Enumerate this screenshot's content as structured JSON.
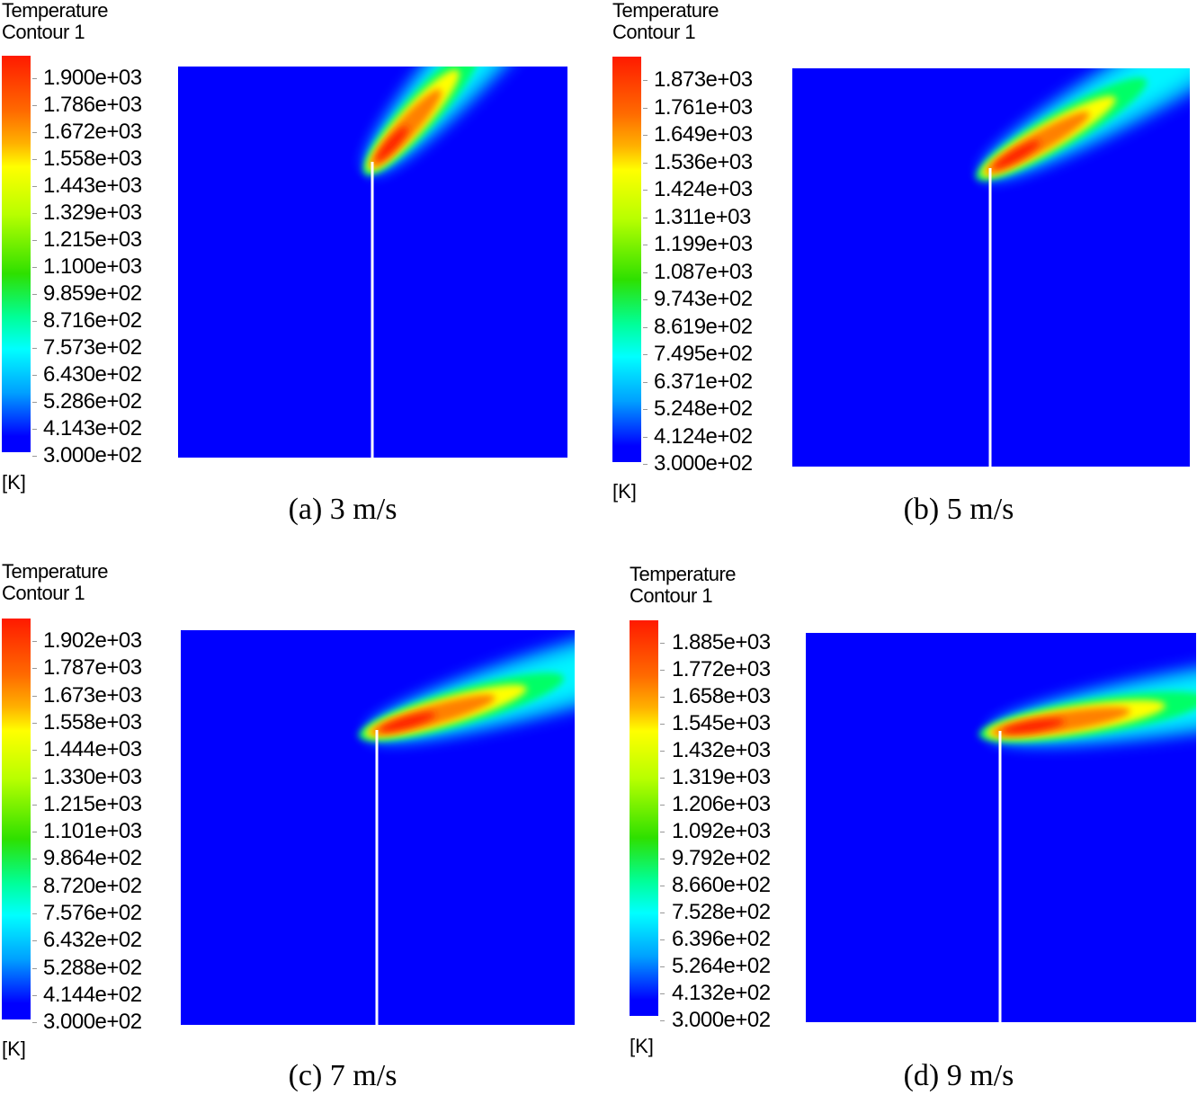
{
  "chart_data": {
    "type": "heatmap",
    "variable": "Temperature",
    "panels": [
      {
        "id": "a",
        "title_line1": "Temperature",
        "title_line2": "Contour 1",
        "unit": "[K]",
        "caption": "(a) 3 m/s",
        "velocity_mps": 3,
        "range": [
          300,
          1900
        ],
        "ticks": [
          "1.900e+03",
          "1.786e+03",
          "1.672e+03",
          "1.558e+03",
          "1.443e+03",
          "1.329e+03",
          "1.215e+03",
          "1.100e+03",
          "9.859e+02",
          "8.716e+02",
          "7.573e+02",
          "6.430e+02",
          "5.286e+02",
          "4.143e+02",
          "3.000e+02"
        ]
      },
      {
        "id": "b",
        "title_line1": "Temperature",
        "title_line2": "Contour 1",
        "unit": "[K]",
        "caption": "(b) 5 m/s",
        "velocity_mps": 5,
        "range": [
          300,
          1873
        ],
        "ticks": [
          "1.873e+03",
          "1.761e+03",
          "1.649e+03",
          "1.536e+03",
          "1.424e+03",
          "1.311e+03",
          "1.199e+03",
          "1.087e+03",
          "9.743e+02",
          "8.619e+02",
          "7.495e+02",
          "6.371e+02",
          "5.248e+02",
          "4.124e+02",
          "3.000e+02"
        ]
      },
      {
        "id": "c",
        "title_line1": "Temperature",
        "title_line2": "Contour 1",
        "unit": "[K]",
        "caption": "(c) 7 m/s",
        "velocity_mps": 7,
        "range": [
          300,
          1902
        ],
        "ticks": [
          "1.902e+03",
          "1.787e+03",
          "1.673e+03",
          "1.558e+03",
          "1.444e+03",
          "1.330e+03",
          "1.215e+03",
          "1.101e+03",
          "9.864e+02",
          "8.720e+02",
          "7.576e+02",
          "6.432e+02",
          "5.288e+02",
          "4.144e+02",
          "3.000e+02"
        ]
      },
      {
        "id": "d",
        "title_line1": "Temperature",
        "title_line2": "Contour 1",
        "unit": "[K]",
        "caption": "(d) 9 m/s",
        "velocity_mps": 9,
        "range": [
          300,
          1885
        ],
        "ticks": [
          "1.885e+03",
          "1.772e+03",
          "1.658e+03",
          "1.545e+03",
          "1.432e+03",
          "1.319e+03",
          "1.206e+03",
          "1.092e+03",
          "9.792e+02",
          "8.660e+02",
          "7.528e+02",
          "6.396e+02",
          "5.264e+02",
          "4.132e+02",
          "3.000e+02"
        ]
      }
    ],
    "colormap": [
      "#0000ff",
      "#00ffff",
      "#00ff00",
      "#ffff00",
      "#ff0000"
    ]
  }
}
